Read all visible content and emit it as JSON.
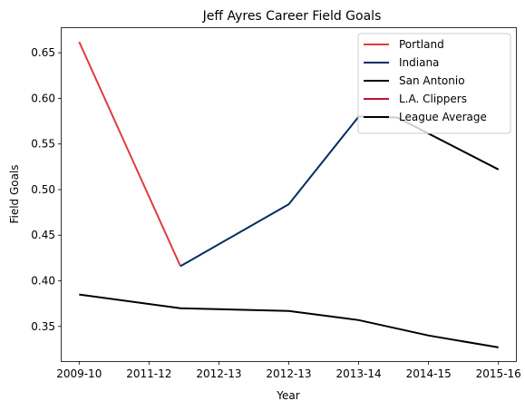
{
  "chart_data": {
    "type": "line",
    "title": "Jeff Ayres Career Field Goals",
    "xlabel": "Year",
    "ylabel": "Field Goals",
    "xtick_labels": [
      "2009-10",
      "2011-12",
      "2012-13",
      "2012-13",
      "2013-14",
      "2014-15",
      "2015-16"
    ],
    "xlim": [
      -0.25,
      6.25
    ],
    "ylim": [
      0.312,
      0.677
    ],
    "yticks": [
      0.35,
      0.4,
      0.45,
      0.5,
      0.55,
      0.6,
      0.65
    ],
    "grid": false,
    "legend_position": "top-right",
    "series": [
      {
        "name": "Portland",
        "color": "#e03a3e",
        "x": [
          0,
          1.45
        ],
        "y": [
          0.662,
          0.416
        ]
      },
      {
        "name": "Indiana",
        "color": "#002d62",
        "x": [
          1.45,
          3.0,
          4.0
        ],
        "y": [
          0.416,
          0.484,
          0.58
        ]
      },
      {
        "name": "San Antonio",
        "color": "#000000",
        "x": [
          4.0,
          4.55,
          6.0
        ],
        "y": [
          0.58,
          0.579,
          0.522
        ]
      },
      {
        "name": "L.A. Clippers",
        "color": "#c8102e",
        "x": [],
        "y": []
      },
      {
        "name": "League Average",
        "color": "#000000",
        "x": [
          0,
          1.45,
          3.0,
          4.0,
          5.0,
          6.0
        ],
        "y": [
          0.385,
          0.37,
          0.367,
          0.357,
          0.34,
          0.327
        ]
      }
    ]
  }
}
